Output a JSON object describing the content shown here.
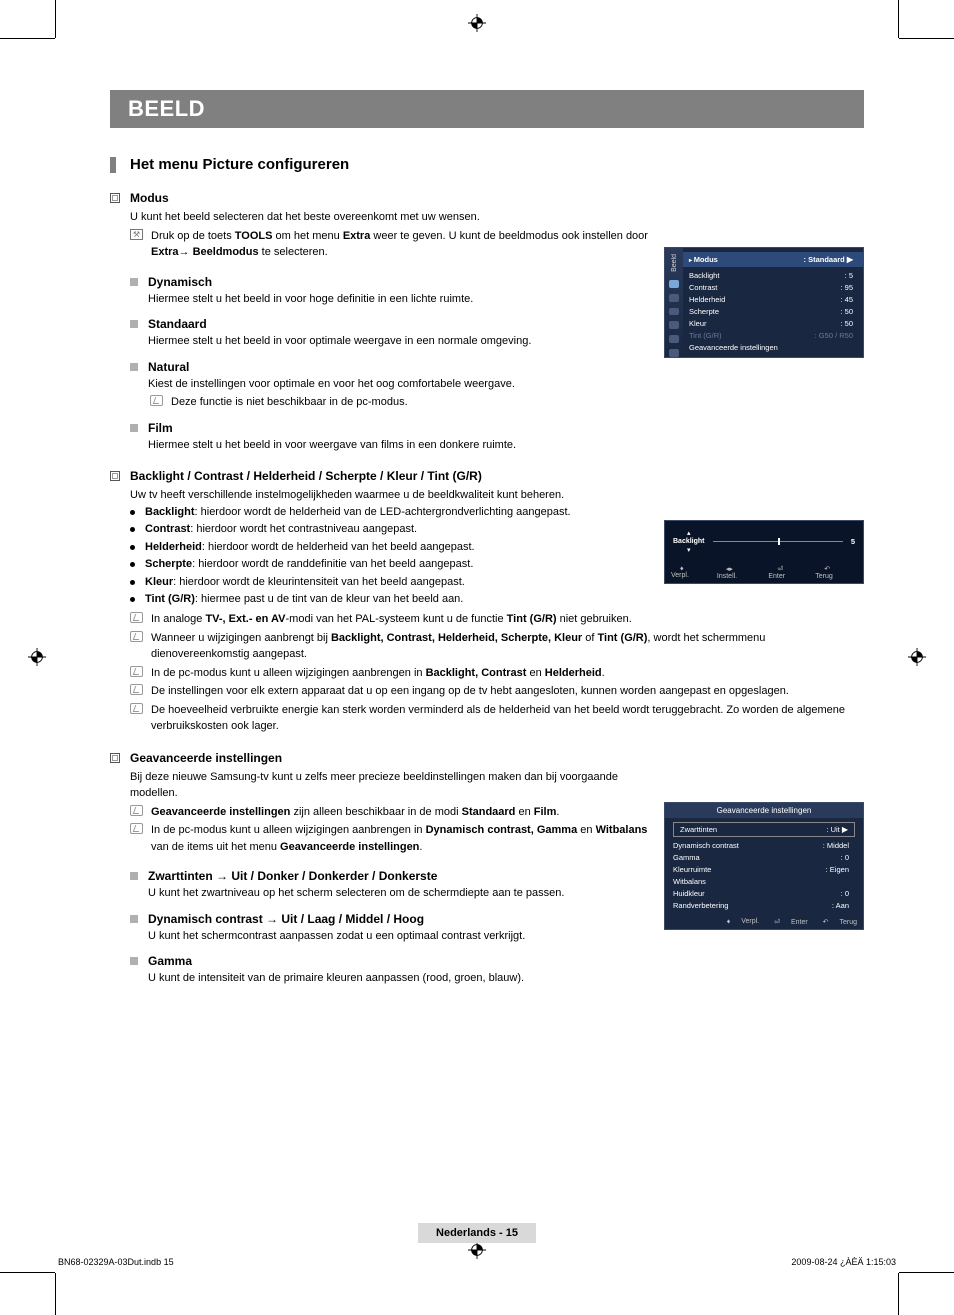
{
  "banner": "BEELD",
  "heading": "Het menu Picture configureren",
  "sections": {
    "modus": {
      "title": "Modus",
      "intro": "U kunt het beeld selecteren dat het beste overeenkomt met uw wensen.",
      "tools_line_a": "Druk op de toets ",
      "tools_b1": "TOOLS",
      "tools_line_b": " om het menu ",
      "tools_b2": "Extra",
      "tools_line_c": " weer te geven. U kunt de beeldmodus ook instellen door ",
      "tools_b3": "Extra",
      "tools_arrow": "→ ",
      "tools_b4": "Beeldmodus",
      "tools_line_d": " te selecteren.",
      "subs": {
        "dynamisch": {
          "t": "Dynamisch",
          "b": "Hiermee stelt u het beeld in voor hoge definitie in een lichte ruimte."
        },
        "standaard": {
          "t": "Standaard",
          "b": "Hiermee stelt u het beeld in voor optimale weergave in een normale omgeving."
        },
        "natural": {
          "t": "Natural",
          "b": "Kiest de instellingen voor optimale en voor het oog comfortabele weergave.",
          "note": "Deze functie is niet beschikbaar in de pc-modus."
        },
        "film": {
          "t": "Film",
          "b": "Hiermee stelt u het beeld in voor weergave van films in een donkere ruimte."
        }
      }
    },
    "backlight": {
      "title": "Backlight / Contrast / Helderheid / Scherpte / Kleur / Tint (G/R)",
      "intro": "Uw tv heeft verschillende instelmogelijkheden waarmee u de beeldkwaliteit kunt beheren.",
      "items": [
        {
          "k": "Backlight",
          "v": ": hierdoor wordt de helderheid van de LED-achtergrondverlichting aangepast."
        },
        {
          "k": "Contrast",
          "v": ": hierdoor wordt het contrastniveau aangepast."
        },
        {
          "k": "Helderheid",
          "v": ": hierdoor wordt de helderheid van het beeld aangepast."
        },
        {
          "k": "Scherpte",
          "v": ": hierdoor wordt de randdefinitie van het beeld aangepast."
        },
        {
          "k": "Kleur",
          "v": ": hierdoor wordt de kleurintensiteit van het beeld aangepast."
        },
        {
          "k": "Tint (G/R)",
          "v": ": hiermee past u de tint van de kleur van het beeld aan."
        }
      ],
      "notes": {
        "n1a": "In analoge ",
        "n1b": "TV-, Ext.- en AV",
        "n1c": "-modi van het PAL-systeem kunt u de functie ",
        "n1d": "Tint (G/R)",
        "n1e": " niet gebruiken.",
        "n2a": "Wanneer u wijzigingen aanbrengt bij ",
        "n2b": "Backlight, Contrast, Helderheid, Scherpte, Kleur",
        "n2c": " of ",
        "n2d": "Tint (G/R)",
        "n2e": ", wordt het schermmenu dienovereenkomstig aangepast.",
        "n3a": "In de pc-modus kunt u alleen wijzigingen aanbrengen in ",
        "n3b": "Backlight, Contrast",
        "n3c": " en ",
        "n3d": "Helderheid",
        "n3e": ".",
        "n4": "De instellingen voor elk extern apparaat dat u op een ingang op de tv hebt aangesloten, kunnen worden aangepast en opgeslagen.",
        "n5": "De hoeveelheid verbruikte energie kan sterk worden verminderd als de helderheid van het beeld wordt teruggebracht. Zo worden de algemene verbruikskosten ook lager."
      }
    },
    "advanced": {
      "title": "Geavanceerde instellingen",
      "intro": "Bij deze nieuwe Samsung-tv kunt u zelfs meer precieze beeldinstellingen maken dan bij voorgaande modellen.",
      "n1a": "Geavanceerde instellingen",
      "n1b": " zijn alleen beschikbaar in de modi ",
      "n1c": "Standaard",
      "n1d": " en ",
      "n1e": "Film",
      "n1f": ".",
      "n2a": "In de pc-modus kunt u alleen wijzigingen aanbrengen in ",
      "n2b": "Dynamisch contrast, Gamma",
      "n2c": " en ",
      "n2d": "Witbalans",
      "n2e": " van de items uit het menu ",
      "n2f": "Geavanceerde instellingen",
      "n2g": ".",
      "subs": {
        "zwart": {
          "t": "Zwarttinten → Uit / Donker / Donkerder / Donkerste",
          "b": "U kunt het zwartniveau op het scherm selecteren om de schermdiepte aan te passen."
        },
        "dyn": {
          "t": "Dynamisch contrast → Uit / Laag / Middel / Hoog",
          "b": "U kunt het schermcontrast aanpassen zodat u een optimaal contrast verkrijgt."
        },
        "gamma": {
          "t": "Gamma",
          "b": "U kunt de intensiteit van de primaire kleuren aanpassen (rood, groen, blauw)."
        }
      }
    }
  },
  "osd1": {
    "tab_label": "Beeld",
    "hl_left": "Modus",
    "hl_right": ": Standaard",
    "rows": [
      {
        "l": "Backlight",
        "r": ": 5"
      },
      {
        "l": "Contrast",
        "r": ": 95"
      },
      {
        "l": "Helderheid",
        "r": ": 45"
      },
      {
        "l": "Scherpte",
        "r": ": 50"
      },
      {
        "l": "Kleur",
        "r": ": 50"
      }
    ],
    "dim": {
      "l": "Tint (G/R)",
      "r": ": G50 / R50"
    },
    "last": "Geavanceerde instellingen"
  },
  "osd2": {
    "label": "Backlight",
    "value": "5",
    "footer": {
      "a": "Verpl.",
      "b": "Instell.",
      "c": "Enter",
      "d": "Terug"
    }
  },
  "osd3": {
    "title": "Geavanceerde instellingen",
    "sel": {
      "l": "Zwarttinten",
      "r": ": Uit"
    },
    "rows": [
      {
        "l": "Dynamisch contrast",
        "r": ": Middel"
      },
      {
        "l": "Gamma",
        "r": ": 0"
      },
      {
        "l": "Kleurruimte",
        "r": ": Eigen"
      },
      {
        "l": "Witbalans",
        "r": ""
      },
      {
        "l": "Huidkleur",
        "r": ": 0"
      },
      {
        "l": "Randverbetering",
        "r": ": Aan"
      }
    ],
    "footer": {
      "a": "Verpl.",
      "b": "Enter",
      "c": "Terug"
    }
  },
  "footer": {
    "page": "Nederlands - 15",
    "left": "BN68-02329A-03Dut.indb   15",
    "right": "2009-08-24   ¿ÀÈÄ 1:15:03"
  }
}
